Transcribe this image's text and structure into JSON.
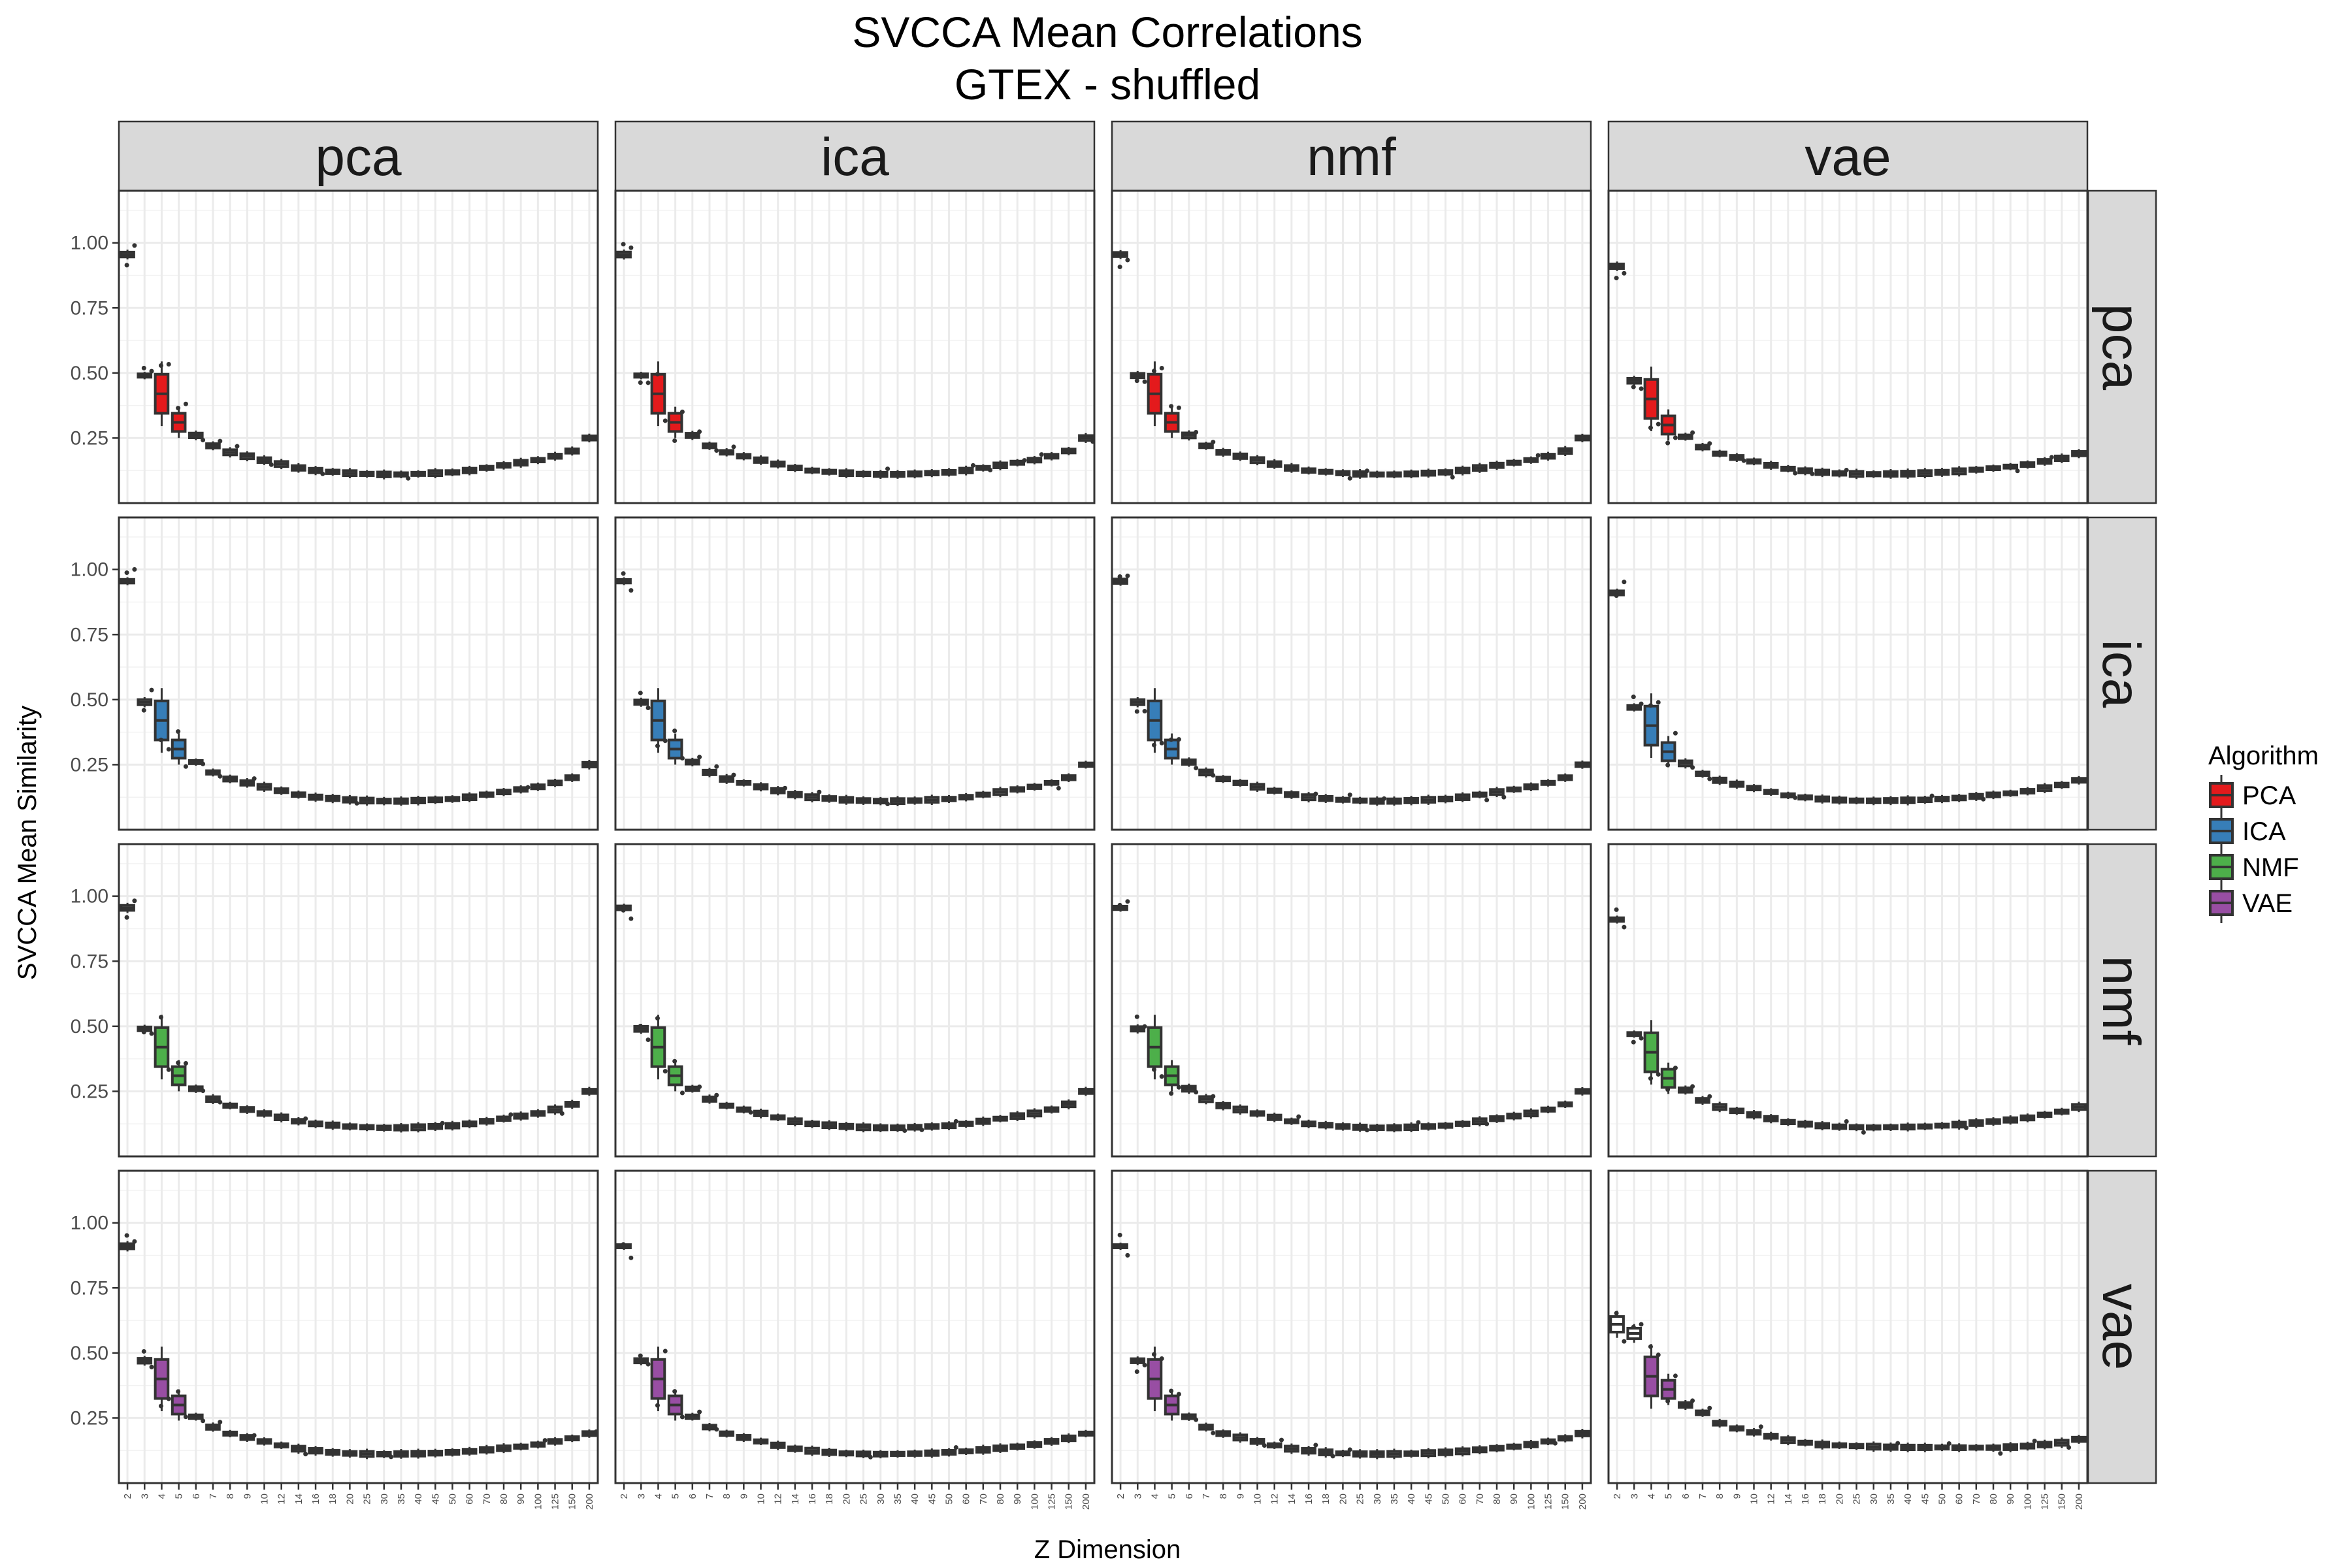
{
  "chart_data": {
    "type": "boxplot-facet-grid",
    "title": "SVCCA Mean Correlations",
    "subtitle": "GTEX - shuffled",
    "xlabel": "Z Dimension",
    "ylabel": "SVCCA Mean Similarity",
    "ylim": [
      0.0,
      1.2
    ],
    "yticks": [
      0.25,
      0.5,
      0.75,
      1.0
    ],
    "ytick_labels": [
      "0.25",
      "0.50",
      "0.75",
      "1.00"
    ],
    "grid": true,
    "legend": {
      "title": "Algorithm",
      "placement": "right",
      "items": [
        {
          "label": "PCA",
          "color": "#E41A1C"
        },
        {
          "label": "ICA",
          "color": "#377EB8"
        },
        {
          "label": "NMF",
          "color": "#4DAF4A"
        },
        {
          "label": "VAE",
          "color": "#984EA3"
        }
      ]
    },
    "columns": [
      "pca",
      "ica",
      "nmf",
      "vae"
    ],
    "rows": [
      "pca",
      "ica",
      "nmf",
      "vae"
    ],
    "row_colors": [
      "#E41A1C",
      "#377EB8",
      "#4DAF4A",
      "#984EA3"
    ],
    "categories": [
      "2",
      "3",
      "4",
      "5",
      "6",
      "7",
      "8",
      "9",
      "10",
      "12",
      "14",
      "16",
      "18",
      "20",
      "25",
      "30",
      "35",
      "40",
      "45",
      "50",
      "60",
      "70",
      "80",
      "90",
      "100",
      "125",
      "150",
      "200"
    ],
    "median_profiles": {
      "pca": [
        0.955,
        0.49,
        0.42,
        0.31,
        0.26,
        0.22,
        0.195,
        0.18,
        0.165,
        0.15,
        0.135,
        0.125,
        0.12,
        0.115,
        0.112,
        0.11,
        0.11,
        0.112,
        0.115,
        0.118,
        0.125,
        0.135,
        0.145,
        0.155,
        0.165,
        0.18,
        0.2,
        0.25
      ],
      "vae": [
        0.91,
        0.47,
        0.4,
        0.3,
        0.255,
        0.215,
        0.19,
        0.175,
        0.16,
        0.145,
        0.132,
        0.124,
        0.118,
        0.114,
        0.112,
        0.111,
        0.112,
        0.113,
        0.115,
        0.118,
        0.122,
        0.128,
        0.134,
        0.14,
        0.148,
        0.16,
        0.172,
        0.19
      ],
      "vae_vae": [
        0.61,
        0.575,
        0.41,
        0.36,
        0.3,
        0.27,
        0.23,
        0.21,
        0.195,
        0.18,
        0.165,
        0.155,
        0.148,
        0.145,
        0.142,
        0.14,
        0.138,
        0.137,
        0.137,
        0.137,
        0.136,
        0.136,
        0.136,
        0.138,
        0.142,
        0.148,
        0.155,
        0.168
      ]
    }
  }
}
